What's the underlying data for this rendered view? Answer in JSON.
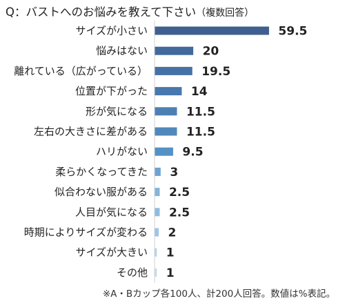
{
  "title": "Q：バストへのお悩みを教えて下さい",
  "subtitle": "（複数回答）",
  "footnote": "※A・Bカップ各100人、計200人回答。数値は%表記。",
  "chart_data": {
    "type": "bar",
    "orientation": "horizontal",
    "categories": [
      "サイズが小さい",
      "悩みはない",
      "離れている（広がっている）",
      "位置が下がった",
      "形が気になる",
      "左右の大きさに差がある",
      "ハリがない",
      "柔らかくなってきた",
      "似合わない服がある",
      "人目が気になる",
      "時期によりサイズが変わる",
      "サイズが大きい",
      "その他"
    ],
    "values": [
      59.5,
      20,
      19.5,
      14,
      11.5,
      11.5,
      9.5,
      3,
      2.5,
      2.5,
      2,
      1,
      1
    ],
    "data_labels": [
      "59.5",
      "20",
      "19.5",
      "14",
      "11.5",
      "11.5",
      "9.5",
      "3",
      "2.5",
      "2.5",
      "2",
      "1",
      "1"
    ],
    "unit": "%",
    "xlim": [
      0,
      60
    ],
    "grid": false,
    "legend": "none",
    "bar_colors": [
      "#3e5f8f",
      "#41699b",
      "#4571a6",
      "#4878ad",
      "#4c80b5",
      "#5088bd",
      "#5491c5",
      "#6ea3d2",
      "#85b3dc",
      "#91bbe1",
      "#9ec4e6",
      "#b5d3ee",
      "#c3dcf1"
    ]
  }
}
